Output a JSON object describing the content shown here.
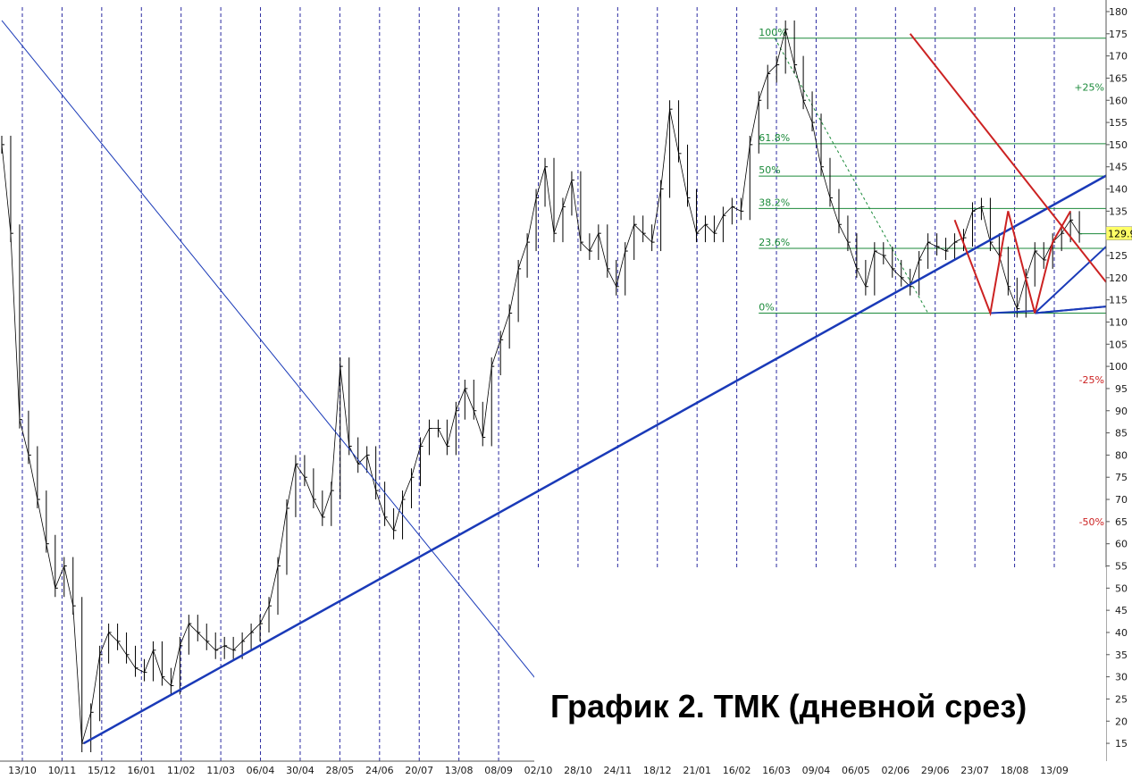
{
  "chart_data": {
    "type": "line",
    "title": "График 2. ТМК (дневной срез)",
    "ylim": [
      13,
      181
    ],
    "y_ticks": [
      15,
      20,
      25,
      30,
      35,
      40,
      45,
      50,
      55,
      60,
      65,
      70,
      75,
      80,
      85,
      90,
      95,
      100,
      105,
      110,
      115,
      120,
      125,
      130,
      135,
      140,
      145,
      150,
      155,
      160,
      165,
      170,
      175,
      180
    ],
    "x_tick_labels": [
      "13/10",
      "10/11",
      "15/12",
      "16/01",
      "11/02",
      "11/03",
      "06/04",
      "30/04",
      "28/05",
      "24/06",
      "20/07",
      "13/08",
      "08/09",
      "02/10",
      "28/10",
      "24/11",
      "18/12",
      "21/01",
      "16/02",
      "16/03",
      "09/04",
      "06/05",
      "02/06",
      "29/06",
      "23/07",
      "18/08",
      "13/09"
    ],
    "grid": "vertical dashed at x ticks",
    "last_price_label": "129.9",
    "last_price": 129.9,
    "price_series": {
      "name": "",
      "color": "#000000",
      "points": [
        [
          0,
          150
        ],
        [
          1,
          130
        ],
        [
          2,
          88
        ],
        [
          3,
          80
        ],
        [
          4,
          70
        ],
        [
          5,
          60
        ],
        [
          6,
          50
        ],
        [
          7,
          55
        ],
        [
          8,
          46
        ],
        [
          9,
          15
        ],
        [
          10,
          22
        ],
        [
          11,
          35
        ],
        [
          12,
          40
        ],
        [
          13,
          38
        ],
        [
          14,
          35
        ],
        [
          15,
          32
        ],
        [
          16,
          31
        ],
        [
          17,
          36
        ],
        [
          18,
          30
        ],
        [
          19,
          28
        ],
        [
          20,
          37
        ],
        [
          21,
          42
        ],
        [
          22,
          40
        ],
        [
          23,
          38
        ],
        [
          24,
          36
        ],
        [
          25,
          37
        ],
        [
          26,
          36
        ],
        [
          27,
          38
        ],
        [
          28,
          40
        ],
        [
          29,
          42
        ],
        [
          30,
          46
        ],
        [
          31,
          55
        ],
        [
          32,
          68
        ],
        [
          33,
          78
        ],
        [
          34,
          75
        ],
        [
          35,
          70
        ],
        [
          36,
          66
        ],
        [
          37,
          72
        ],
        [
          38,
          100
        ],
        [
          39,
          82
        ],
        [
          40,
          78
        ],
        [
          41,
          80
        ],
        [
          42,
          72
        ],
        [
          43,
          66
        ],
        [
          44,
          63
        ],
        [
          45,
          70
        ],
        [
          46,
          75
        ],
        [
          47,
          82
        ],
        [
          48,
          86
        ],
        [
          49,
          86
        ],
        [
          50,
          82
        ],
        [
          51,
          90
        ],
        [
          52,
          95
        ],
        [
          53,
          90
        ],
        [
          54,
          84
        ],
        [
          55,
          100
        ],
        [
          56,
          106
        ],
        [
          57,
          112
        ],
        [
          58,
          122
        ],
        [
          59,
          128
        ],
        [
          60,
          138
        ],
        [
          61,
          145
        ],
        [
          62,
          130
        ],
        [
          63,
          136
        ],
        [
          64,
          142
        ],
        [
          65,
          128
        ],
        [
          66,
          126
        ],
        [
          67,
          130
        ],
        [
          68,
          122
        ],
        [
          69,
          118
        ],
        [
          70,
          126
        ],
        [
          71,
          132
        ],
        [
          72,
          130
        ],
        [
          73,
          128
        ],
        [
          74,
          140
        ],
        [
          75,
          158
        ],
        [
          76,
          148
        ],
        [
          77,
          138
        ],
        [
          78,
          130
        ],
        [
          79,
          132
        ],
        [
          80,
          130
        ],
        [
          81,
          134
        ],
        [
          82,
          136
        ],
        [
          83,
          135
        ],
        [
          84,
          150
        ],
        [
          85,
          160
        ],
        [
          86,
          166
        ],
        [
          87,
          168
        ],
        [
          88,
          176
        ],
        [
          89,
          168
        ],
        [
          90,
          160
        ],
        [
          91,
          155
        ],
        [
          92,
          145
        ],
        [
          93,
          138
        ],
        [
          94,
          132
        ],
        [
          95,
          128
        ],
        [
          96,
          122
        ],
        [
          97,
          118
        ],
        [
          98,
          126
        ],
        [
          99,
          125
        ],
        [
          100,
          122
        ],
        [
          101,
          120
        ],
        [
          102,
          118
        ],
        [
          103,
          124
        ],
        [
          104,
          128
        ],
        [
          105,
          127
        ],
        [
          106,
          126
        ],
        [
          107,
          128
        ],
        [
          108,
          129
        ],
        [
          109,
          135
        ],
        [
          110,
          136
        ],
        [
          111,
          128
        ],
        [
          112,
          125
        ],
        [
          113,
          118
        ],
        [
          114,
          113
        ],
        [
          115,
          120
        ],
        [
          116,
          126
        ],
        [
          117,
          124
        ],
        [
          118,
          128
        ],
        [
          119,
          130
        ],
        [
          120,
          133
        ],
        [
          121,
          129.9
        ]
      ]
    },
    "x_index_max": 124,
    "fibonacci": {
      "labels": [
        "100%",
        "61.8%",
        "50%",
        "38.2%",
        "23.6%",
        "0%"
      ],
      "levels": [
        174,
        150.2,
        142.9,
        135.6,
        126.6,
        112
      ],
      "x_start": 86,
      "x_end": 124,
      "color": "#1b8a3a"
    },
    "percent_labels": [
      {
        "text": "+25%",
        "y": 163,
        "color": "#1b8a3a"
      },
      {
        "text": "-25%",
        "y": 97,
        "color": "#cc2222"
      },
      {
        "text": "-50%",
        "y": 65,
        "color": "#cc2222"
      }
    ],
    "trend_lines": [
      {
        "name": "",
        "color": "#1a3ab8",
        "width": 2.5,
        "points": [
          [
            9.2,
            15
          ],
          [
            124,
            143
          ]
        ]
      },
      {
        "name": "",
        "color": "#1a3ab8",
        "width": 1,
        "points": [
          [
            0,
            178
          ],
          [
            63,
            22
          ]
        ]
      },
      {
        "name": "",
        "color": "#1a3ab8",
        "width": 2,
        "points": [
          [
            116,
            112
          ],
          [
            124,
            113.5
          ]
        ]
      },
      {
        "name": "",
        "color": "#1a3ab8",
        "width": 2,
        "points": [
          [
            116,
            112
          ],
          [
            124,
            127
          ]
        ]
      },
      {
        "name": "",
        "color": "#1a3ab8",
        "width": 2,
        "points": [
          [
            116,
            112
          ],
          [
            124,
            113.5
          ]
        ]
      },
      {
        "name": "",
        "color": "#1a3ab8",
        "width": 2,
        "points": [
          [
            111,
            112
          ],
          [
            116,
            112.5
          ]
        ]
      },
      {
        "name": "",
        "color": "#cc2222",
        "width": 2,
        "points": [
          [
            102,
            175
          ],
          [
            124,
            119
          ]
        ]
      },
      {
        "name": "",
        "color": "#cc2222",
        "width": 2,
        "points": [
          [
            107,
            133
          ],
          [
            111,
            112
          ],
          [
            113,
            135
          ],
          [
            116,
            112
          ],
          [
            118,
            128
          ],
          [
            120,
            135
          ]
        ]
      }
    ],
    "fib_diagonal": {
      "color": "#1b8a3a",
      "points": [
        [
          86,
          174
        ],
        [
          104,
          112
        ]
      ]
    }
  }
}
